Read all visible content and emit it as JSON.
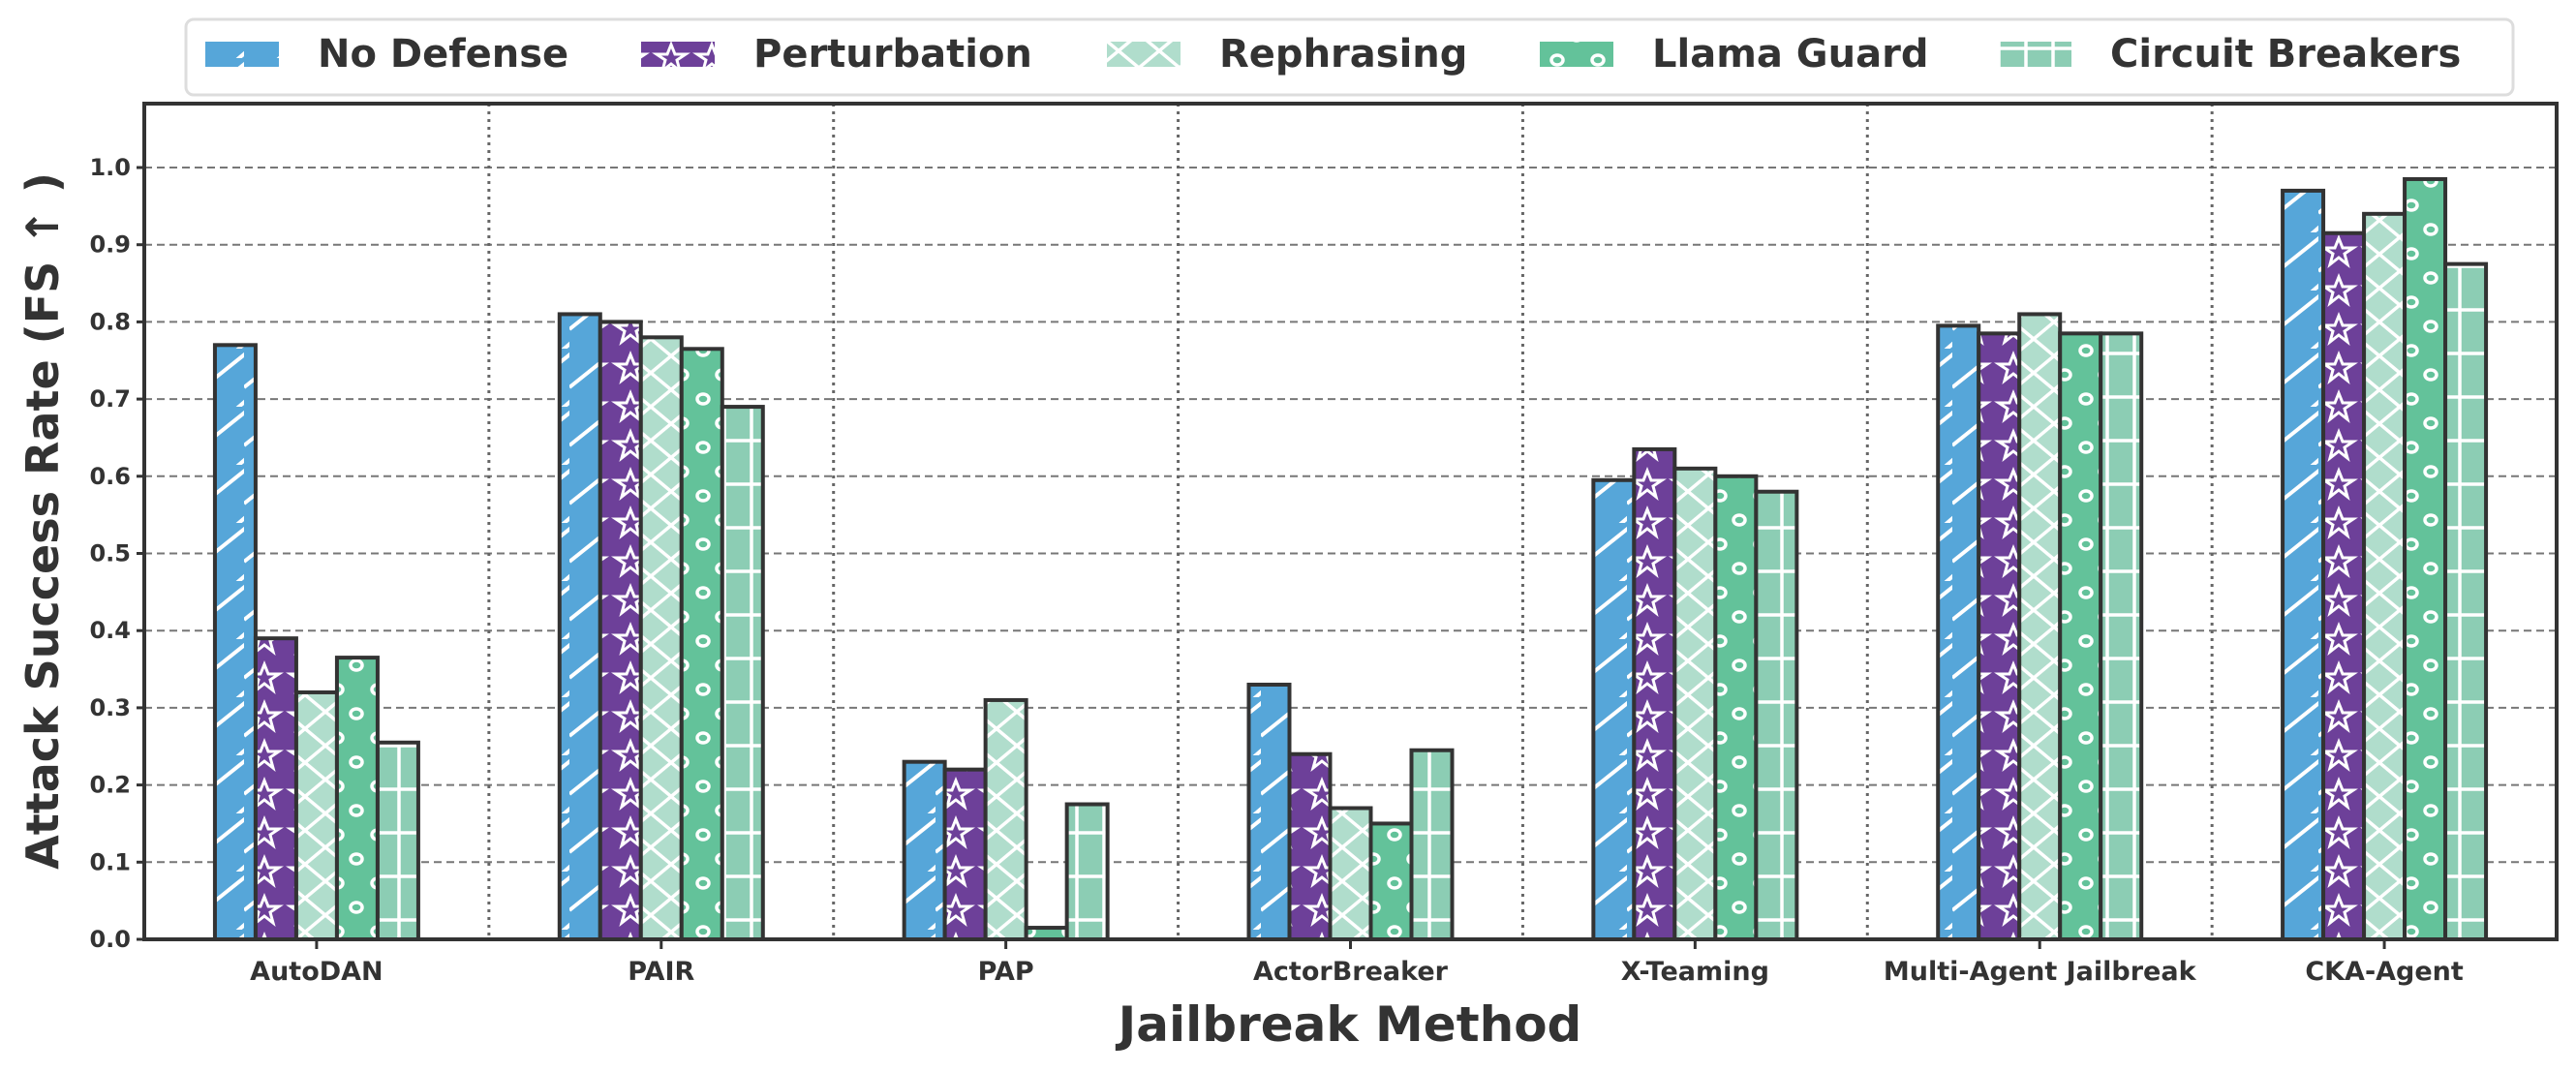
{
  "chart_data": {
    "type": "bar",
    "xlabel": "Jailbreak Method",
    "ylabel": "Attack Success Rate (FS ↑ )",
    "ylim": [
      0,
      1.08
    ],
    "yticks": [
      "0.0",
      "0.1",
      "0.2",
      "0.3",
      "0.4",
      "0.5",
      "0.6",
      "0.7",
      "0.8",
      "0.9",
      "1.0"
    ],
    "grid": "horizontal dashed, vertical dotted group separators",
    "legend_placement": "top-center, outside",
    "categories": [
      "AutoDAN",
      "PAIR",
      "PAP",
      "ActorBreaker",
      "X-Teaming",
      "Multi-Agent Jailbreak",
      "CKA-Agent"
    ],
    "series": [
      {
        "name": "No Defense",
        "color": "#56a6d9",
        "hatch": "diagonal",
        "values": [
          0.77,
          0.81,
          0.23,
          0.33,
          0.595,
          0.795,
          0.97
        ]
      },
      {
        "name": "Perturbation",
        "color": "#6d4099",
        "hatch": "stars",
        "values": [
          0.39,
          0.8,
          0.22,
          0.24,
          0.635,
          0.785,
          0.915
        ]
      },
      {
        "name": "Rephrasing",
        "color": "#b0ddcc",
        "hatch": "cross-diagonal",
        "values": [
          0.32,
          0.78,
          0.31,
          0.17,
          0.61,
          0.81,
          0.94
        ]
      },
      {
        "name": "Llama Guard",
        "color": "#63c29a",
        "hatch": "circles",
        "values": [
          0.365,
          0.765,
          0.015,
          0.15,
          0.6,
          0.785,
          0.985
        ]
      },
      {
        "name": "Circuit Breakers",
        "color": "#8ccdb4",
        "hatch": "grid",
        "values": [
          0.255,
          0.69,
          0.175,
          0.245,
          0.58,
          0.785,
          0.875
        ]
      }
    ]
  }
}
